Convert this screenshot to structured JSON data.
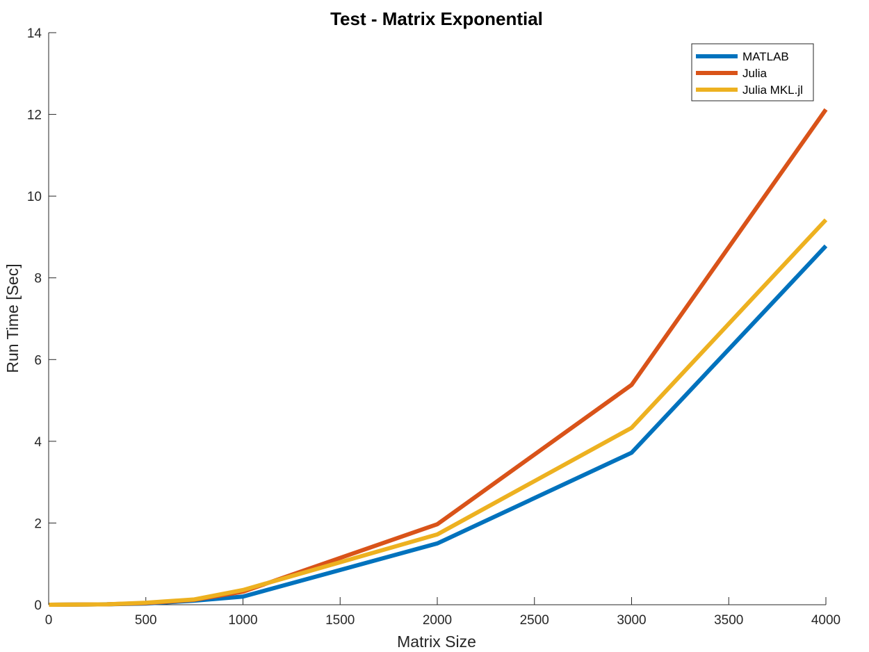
{
  "chart_data": {
    "type": "line",
    "title": "Test - Matrix Exponential",
    "xlabel": "Matrix Size",
    "ylabel": "Run Time  [Sec]",
    "xlim": [
      0,
      4000
    ],
    "ylim": [
      0,
      14
    ],
    "xticks": [
      0,
      500,
      1000,
      1500,
      2000,
      2500,
      3000,
      3500,
      4000
    ],
    "yticks": [
      0,
      2,
      4,
      6,
      8,
      10,
      12,
      14
    ],
    "grid": false,
    "legend_position": "top-right",
    "x": [
      2,
      300,
      500,
      750,
      1000,
      2000,
      3000,
      4000
    ],
    "series": [
      {
        "name": "MATLAB",
        "color": "#0072BD",
        "values": [
          0.0,
          0.01,
          0.03,
          0.1,
          0.2,
          1.5,
          3.72,
          8.78
        ]
      },
      {
        "name": "Julia",
        "color": "#D95319",
        "values": [
          0.0,
          0.01,
          0.04,
          0.12,
          0.32,
          1.97,
          5.38,
          12.12
        ]
      },
      {
        "name": "Julia MKL.jl",
        "color": "#EDB120",
        "values": [
          0.0,
          0.01,
          0.05,
          0.13,
          0.36,
          1.72,
          4.33,
          9.42
        ]
      }
    ]
  }
}
